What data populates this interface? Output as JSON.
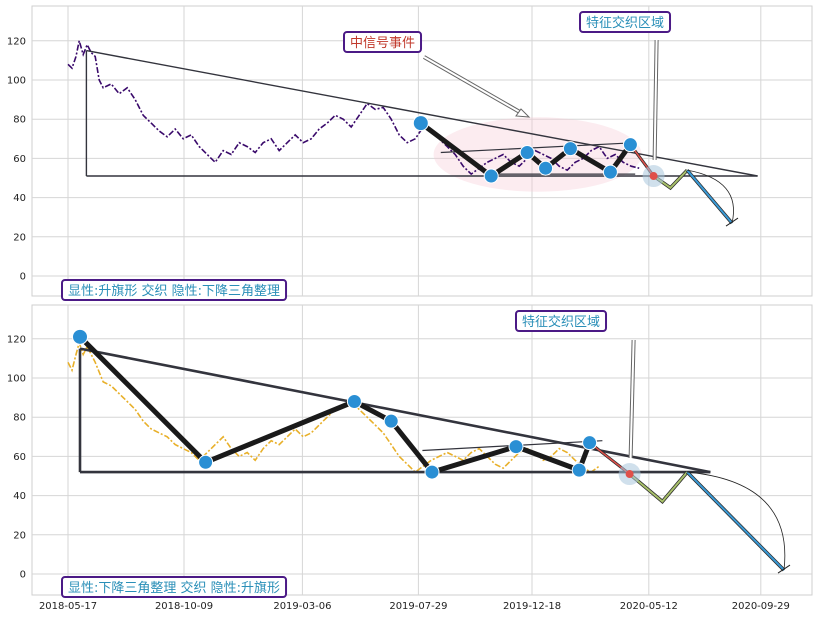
{
  "chart_data": [
    {
      "type": "line",
      "panel": "top",
      "ylim": [
        -10,
        135
      ],
      "yticks": [
        0,
        20,
        40,
        60,
        80,
        100,
        120
      ],
      "grid": true,
      "price_color": "#3a0a6b",
      "price_series": [
        [
          "2018-05-17",
          108
        ],
        [
          "2018-05-22",
          106
        ],
        [
          "2018-05-27",
          112
        ],
        [
          "2018-05-31",
          120
        ],
        [
          "2018-06-05",
          113
        ],
        [
          "2018-06-10",
          118
        ],
        [
          "2018-06-15",
          114
        ],
        [
          "2018-06-20",
          112
        ],
        [
          "2018-06-25",
          100
        ],
        [
          "2018-06-30",
          96
        ],
        [
          "2018-07-10",
          98
        ],
        [
          "2018-07-20",
          93
        ],
        [
          "2018-07-30",
          96
        ],
        [
          "2018-08-09",
          90
        ],
        [
          "2018-08-19",
          82
        ],
        [
          "2018-08-29",
          78
        ],
        [
          "2018-09-08",
          74
        ],
        [
          "2018-09-18",
          71
        ],
        [
          "2018-09-28",
          75
        ],
        [
          "2018-10-08",
          70
        ],
        [
          "2018-10-18",
          72
        ],
        [
          "2018-10-28",
          66
        ],
        [
          "2018-11-07",
          62
        ],
        [
          "2018-11-17",
          58
        ],
        [
          "2018-11-27",
          64
        ],
        [
          "2018-12-07",
          62
        ],
        [
          "2018-12-17",
          68
        ],
        [
          "2018-12-27",
          66
        ],
        [
          "2019-01-06",
          63
        ],
        [
          "2019-01-16",
          68
        ],
        [
          "2019-01-26",
          70
        ],
        [
          "2019-02-05",
          64
        ],
        [
          "2019-02-15",
          68
        ],
        [
          "2019-02-25",
          72
        ],
        [
          "2019-03-07",
          68
        ],
        [
          "2019-03-17",
          70
        ],
        [
          "2019-03-27",
          75
        ],
        [
          "2019-04-06",
          78
        ],
        [
          "2019-04-16",
          82
        ],
        [
          "2019-04-26",
          80
        ],
        [
          "2019-05-06",
          76
        ],
        [
          "2019-05-16",
          82
        ],
        [
          "2019-05-26",
          88
        ],
        [
          "2019-06-05",
          85
        ],
        [
          "2019-06-15",
          86
        ],
        [
          "2019-06-25",
          80
        ],
        [
          "2019-07-05",
          72
        ],
        [
          "2019-07-15",
          68
        ],
        [
          "2019-07-25",
          70
        ],
        [
          "2019-08-04",
          76
        ],
        [
          "2019-08-14",
          74
        ],
        [
          "2019-08-24",
          70
        ],
        [
          "2019-09-03",
          66
        ],
        [
          "2019-09-13",
          62
        ],
        [
          "2019-09-23",
          56
        ],
        [
          "2019-10-03",
          52
        ],
        [
          "2019-10-13",
          55
        ],
        [
          "2019-10-23",
          58
        ],
        [
          "2019-11-02",
          60
        ],
        [
          "2019-11-12",
          62
        ],
        [
          "2019-11-22",
          58
        ],
        [
          "2019-12-02",
          56
        ],
        [
          "2019-12-12",
          60
        ],
        [
          "2019-12-22",
          64
        ],
        [
          "2020-01-01",
          62
        ],
        [
          "2020-01-11",
          60
        ],
        [
          "2020-01-21",
          56
        ],
        [
          "2020-01-31",
          54
        ],
        [
          "2020-02-10",
          58
        ],
        [
          "2020-02-20",
          60
        ],
        [
          "2020-03-01",
          64
        ],
        [
          "2020-03-11",
          66
        ],
        [
          "2020-03-21",
          60
        ],
        [
          "2020-03-31",
          62
        ],
        [
          "2020-04-10",
          58
        ],
        [
          "2020-04-20",
          56
        ],
        [
          "2020-04-30",
          55
        ]
      ],
      "pattern_lines": [
        [
          [
            "2018-06-09",
            115
          ],
          [
            "2020-09-25",
            51
          ]
        ],
        [
          [
            "2018-06-09",
            115
          ],
          [
            "2018-06-09",
            51
          ]
        ],
        [
          [
            "2018-06-09",
            51
          ],
          [
            "2020-09-25",
            51
          ]
        ],
        [
          [
            "2019-08-26",
            63
          ],
          [
            "2020-04-25",
            68
          ]
        ],
        [
          [
            "2019-11-01",
            52
          ],
          [
            "2020-04-25",
            52
          ]
        ]
      ],
      "zigzag_thick": [
        [
          "2019-08-01",
          78
        ],
        [
          "2019-10-28",
          51
        ],
        [
          "2019-12-12",
          63
        ],
        [
          "2020-01-04",
          55
        ],
        [
          "2020-02-04",
          65
        ],
        [
          "2020-03-25",
          53
        ],
        [
          "2020-04-19",
          67
        ]
      ],
      "markers": [
        [
          "2019-08-01",
          78
        ],
        [
          "2019-10-28",
          51
        ],
        [
          "2019-12-12",
          63
        ],
        [
          "2020-01-04",
          55
        ],
        [
          "2020-02-04",
          65
        ],
        [
          "2020-03-25",
          53
        ],
        [
          "2020-04-19",
          67
        ]
      ],
      "marker_color": "#2a8fd4",
      "forecast_red": [
        [
          "2020-04-19",
          67
        ],
        [
          "2020-05-18",
          51
        ]
      ],
      "forecast_olive": [
        [
          "2020-05-18",
          51
        ],
        [
          "2020-06-08",
          45
        ],
        [
          "2020-06-29",
          54
        ]
      ],
      "forecast_blue": [
        [
          "2020-06-29",
          54
        ],
        [
          "2020-08-24",
          27
        ]
      ],
      "highlight_ellipse": {
        "cx": "2019-12-25",
        "cy": 62,
        "rx_days": 130,
        "ry": 19
      },
      "trade_point": [
        "2020-05-18",
        51
      ],
      "annotations": {
        "signal_event": "中信号事件",
        "trade_zone": "特征交织区域",
        "pattern_label": "显性:升旗形 交织 隐性:下降三角整理"
      }
    },
    {
      "type": "line",
      "panel": "bottom",
      "ylim": [
        -10,
        135
      ],
      "yticks": [
        0,
        20,
        40,
        60,
        80,
        100,
        120
      ],
      "grid": true,
      "price_color": "#e8b02a",
      "x_tick_labels": [
        "2018-05-17",
        "2018-10-09",
        "2019-03-06",
        "2019-07-29",
        "2019-12-18",
        "2020-05-12",
        "2020-09-29"
      ],
      "price_series": [
        [
          "2018-05-17",
          108
        ],
        [
          "2018-05-22",
          104
        ],
        [
          "2018-05-27",
          112
        ],
        [
          "2018-05-31",
          118
        ],
        [
          "2018-06-05",
          112
        ],
        [
          "2018-06-10",
          116
        ],
        [
          "2018-06-20",
          108
        ],
        [
          "2018-06-30",
          98
        ],
        [
          "2018-07-10",
          96
        ],
        [
          "2018-07-20",
          92
        ],
        [
          "2018-07-30",
          88
        ],
        [
          "2018-08-09",
          84
        ],
        [
          "2018-08-19",
          78
        ],
        [
          "2018-08-29",
          74
        ],
        [
          "2018-09-08",
          72
        ],
        [
          "2018-09-18",
          70
        ],
        [
          "2018-09-28",
          66
        ],
        [
          "2018-10-08",
          64
        ],
        [
          "2018-10-18",
          62
        ],
        [
          "2018-10-28",
          58
        ],
        [
          "2018-11-07",
          62
        ],
        [
          "2018-11-17",
          66
        ],
        [
          "2018-11-27",
          70
        ],
        [
          "2018-12-07",
          64
        ],
        [
          "2018-12-17",
          60
        ],
        [
          "2018-12-27",
          62
        ],
        [
          "2019-01-06",
          58
        ],
        [
          "2019-01-16",
          64
        ],
        [
          "2019-01-26",
          68
        ],
        [
          "2019-02-05",
          66
        ],
        [
          "2019-02-15",
          70
        ],
        [
          "2019-02-25",
          74
        ],
        [
          "2019-03-07",
          70
        ],
        [
          "2019-03-17",
          72
        ],
        [
          "2019-03-27",
          76
        ],
        [
          "2019-04-06",
          80
        ],
        [
          "2019-04-16",
          84
        ],
        [
          "2019-04-26",
          86
        ],
        [
          "2019-05-06",
          88
        ],
        [
          "2019-05-16",
          84
        ],
        [
          "2019-05-26",
          80
        ],
        [
          "2019-06-05",
          76
        ],
        [
          "2019-06-15",
          72
        ],
        [
          "2019-06-25",
          66
        ],
        [
          "2019-07-05",
          60
        ],
        [
          "2019-07-15",
          56
        ],
        [
          "2019-07-25",
          52
        ],
        [
          "2019-08-04",
          55
        ],
        [
          "2019-08-14",
          58
        ],
        [
          "2019-08-24",
          60
        ],
        [
          "2019-09-03",
          62
        ],
        [
          "2019-09-13",
          60
        ],
        [
          "2019-09-23",
          58
        ],
        [
          "2019-10-03",
          62
        ],
        [
          "2019-10-13",
          64
        ],
        [
          "2019-10-23",
          60
        ],
        [
          "2019-11-02",
          56
        ],
        [
          "2019-11-12",
          54
        ],
        [
          "2019-11-22",
          58
        ],
        [
          "2019-12-02",
          62
        ],
        [
          "2019-12-12",
          64
        ],
        [
          "2019-12-22",
          62
        ],
        [
          "2020-01-01",
          58
        ],
        [
          "2020-01-11",
          60
        ],
        [
          "2020-01-21",
          64
        ],
        [
          "2020-01-31",
          62
        ],
        [
          "2020-02-10",
          58
        ],
        [
          "2020-02-20",
          54
        ],
        [
          "2020-03-01",
          52
        ],
        [
          "2020-03-11",
          55
        ]
      ],
      "pattern_lines": [
        [
          [
            "2018-06-01",
            115
          ],
          [
            "2020-07-28",
            52
          ]
        ],
        [
          [
            "2018-06-01",
            115
          ],
          [
            "2018-06-01",
            52
          ]
        ],
        [
          [
            "2018-06-01",
            52
          ],
          [
            "2020-07-28",
            52
          ]
        ],
        [
          [
            "2019-08-03",
            63
          ],
          [
            "2020-03-15",
            68
          ]
        ],
        [
          [
            "2019-08-15",
            52
          ],
          [
            "2020-03-15",
            52
          ]
        ]
      ],
      "zigzag_thick": [
        [
          "2018-06-01",
          121
        ],
        [
          "2018-11-05",
          57
        ],
        [
          "2019-05-10",
          88
        ],
        [
          "2019-06-25",
          78
        ],
        [
          "2019-08-15",
          52
        ],
        [
          "2019-11-28",
          65
        ],
        [
          "2020-02-15",
          53
        ],
        [
          "2020-02-28",
          67
        ]
      ],
      "markers": [
        [
          "2018-06-01",
          121
        ],
        [
          "2018-11-05",
          57
        ],
        [
          "2019-05-10",
          88
        ],
        [
          "2019-06-25",
          78
        ],
        [
          "2019-08-15",
          52
        ],
        [
          "2019-11-28",
          65
        ],
        [
          "2020-02-15",
          53
        ],
        [
          "2020-02-28",
          67
        ]
      ],
      "marker_color": "#2a8fd4",
      "forecast_red": [
        [
          "2020-02-28",
          67
        ],
        [
          "2020-04-18",
          51
        ]
      ],
      "forecast_olive": [
        [
          "2020-04-18",
          51
        ],
        [
          "2020-05-29",
          37
        ],
        [
          "2020-06-29",
          52
        ]
      ],
      "forecast_blue": [
        [
          "2020-06-29",
          52
        ],
        [
          "2020-10-28",
          2
        ]
      ],
      "trade_point": [
        "2020-04-18",
        51
      ],
      "annotations": {
        "trade_zone": "特征交织区域",
        "pattern_label": "显性:下降三角整理 交织 隐性:升旗形"
      }
    }
  ]
}
